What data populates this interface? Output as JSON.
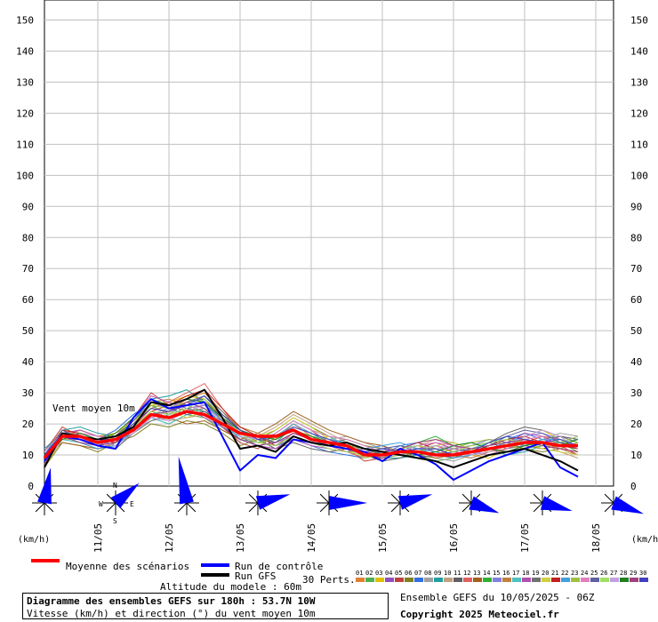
{
  "chart_data": {
    "type": "line",
    "title": "Diagramme des ensembles GEFS sur 180h : 53.7N 10W",
    "subtitle": "Vitesse (km/h) et direction (°) du vent moyen 10m",
    "annotation": "Vent moyen 10m",
    "ylabel": "(km/h)",
    "ylim": [
      0,
      155
    ],
    "yticks": [
      0,
      10,
      20,
      30,
      40,
      50,
      60,
      70,
      80,
      90,
      100,
      110,
      120,
      130,
      140,
      150
    ],
    "xlim": [
      0,
      180
    ],
    "date_ticks": [
      {
        "h": 18,
        "label": "11/05"
      },
      {
        "h": 42,
        "label": "12/05"
      },
      {
        "h": 66,
        "label": "13/05"
      },
      {
        "h": 90,
        "label": "14/05"
      },
      {
        "h": 114,
        "label": "15/05"
      },
      {
        "h": 138,
        "label": "16/05"
      },
      {
        "h": 162,
        "label": "17/05"
      },
      {
        "h": 186,
        "label": "18/05"
      }
    ],
    "x": [
      0,
      6,
      12,
      18,
      24,
      30,
      36,
      42,
      48,
      54,
      60,
      66,
      72,
      78,
      84,
      90,
      96,
      102,
      108,
      114,
      120,
      126,
      132,
      138,
      144,
      150,
      156,
      162,
      168,
      174,
      180
    ],
    "mean": [
      9,
      16,
      16,
      14,
      15,
      18,
      23,
      22,
      24,
      23,
      20,
      17,
      16,
      16,
      18,
      15,
      14,
      13,
      10,
      10,
      11,
      11,
      10,
      10,
      11,
      12,
      13,
      14,
      14,
      13,
      13
    ],
    "control": [
      8,
      16,
      15,
      13,
      12,
      22,
      28,
      25,
      26,
      27,
      16,
      5,
      10,
      9,
      15,
      14,
      13,
      12,
      11,
      8,
      12,
      10,
      7,
      2,
      5,
      8,
      10,
      12,
      14,
      6,
      3
    ],
    "gfs": [
      6,
      17,
      16,
      15,
      16,
      19,
      27,
      26,
      28,
      31,
      22,
      12,
      13,
      11,
      16,
      14,
      13,
      14,
      12,
      11,
      10,
      9,
      8,
      6,
      8,
      10,
      11,
      12,
      10,
      8,
      5
    ],
    "perturbations": [
      [
        8,
        18,
        17,
        15,
        14,
        20,
        25,
        24,
        28,
        30,
        24,
        19,
        17,
        15,
        20,
        16,
        13,
        12,
        11,
        10,
        12,
        13,
        11,
        9,
        10,
        12,
        14,
        15,
        13,
        12,
        11
      ],
      [
        10,
        15,
        14,
        12,
        13,
        17,
        22,
        20,
        23,
        22,
        18,
        15,
        14,
        16,
        19,
        17,
        15,
        14,
        9,
        11,
        12,
        10,
        8,
        9,
        12,
        14,
        16,
        13,
        15,
        14,
        13
      ],
      [
        7,
        16,
        18,
        16,
        17,
        21,
        26,
        27,
        29,
        28,
        21,
        17,
        15,
        14,
        17,
        15,
        16,
        13,
        10,
        9,
        11,
        12,
        13,
        11,
        10,
        9,
        12,
        16,
        18,
        15,
        12
      ],
      [
        9,
        17,
        15,
        13,
        16,
        19,
        24,
        23,
        25,
        26,
        22,
        16,
        13,
        12,
        16,
        14,
        12,
        11,
        12,
        13,
        10,
        11,
        12,
        10,
        9,
        11,
        13,
        12,
        14,
        16,
        15
      ],
      [
        11,
        19,
        16,
        14,
        15,
        22,
        30,
        26,
        24,
        25,
        19,
        14,
        12,
        17,
        21,
        18,
        14,
        12,
        8,
        9,
        10,
        12,
        14,
        12,
        11,
        10,
        12,
        14,
        16,
        13,
        10
      ],
      [
        6,
        14,
        13,
        11,
        14,
        16,
        20,
        19,
        21,
        20,
        17,
        13,
        15,
        18,
        22,
        19,
        16,
        15,
        13,
        12,
        11,
        9,
        10,
        12,
        13,
        15,
        14,
        12,
        11,
        12,
        14
      ],
      [
        8,
        15,
        17,
        15,
        18,
        23,
        27,
        25,
        27,
        29,
        23,
        18,
        16,
        13,
        15,
        13,
        11,
        10,
        9,
        10,
        13,
        14,
        12,
        10,
        11,
        13,
        15,
        17,
        15,
        14,
        12
      ],
      [
        10,
        16,
        14,
        12,
        13,
        18,
        21,
        22,
        26,
        24,
        20,
        16,
        14,
        15,
        18,
        16,
        15,
        16,
        14,
        12,
        10,
        11,
        9,
        8,
        10,
        12,
        11,
        13,
        15,
        17,
        16
      ],
      [
        9,
        18,
        19,
        17,
        16,
        21,
        28,
        29,
        31,
        27,
        21,
        15,
        13,
        14,
        19,
        17,
        14,
        13,
        11,
        9,
        9,
        10,
        11,
        13,
        14,
        12,
        10,
        11,
        13,
        14,
        13
      ],
      [
        7,
        15,
        15,
        14,
        17,
        20,
        23,
        21,
        22,
        23,
        19,
        17,
        16,
        19,
        23,
        20,
        17,
        14,
        12,
        11,
        12,
        13,
        15,
        14,
        12,
        11,
        13,
        15,
        14,
        11,
        9
      ],
      [
        12,
        17,
        16,
        13,
        12,
        17,
        22,
        24,
        27,
        28,
        22,
        17,
        15,
        12,
        14,
        12,
        11,
        12,
        10,
        8,
        9,
        11,
        10,
        9,
        11,
        14,
        17,
        19,
        18,
        16,
        15
      ],
      [
        8,
        16,
        18,
        16,
        15,
        19,
        25,
        27,
        30,
        33,
        25,
        18,
        14,
        13,
        17,
        15,
        13,
        11,
        9,
        10,
        11,
        12,
        13,
        11,
        10,
        11,
        12,
        14,
        16,
        15,
        14
      ],
      [
        9,
        14,
        13,
        12,
        14,
        18,
        24,
        22,
        20,
        21,
        18,
        15,
        17,
        20,
        24,
        21,
        18,
        16,
        14,
        13,
        11,
        10,
        9,
        10,
        12,
        13,
        15,
        13,
        12,
        13,
        12
      ],
      [
        10,
        17,
        15,
        14,
        16,
        21,
        26,
        23,
        25,
        24,
        20,
        16,
        15,
        16,
        18,
        16,
        14,
        13,
        12,
        11,
        12,
        14,
        16,
        13,
        11,
        10,
        11,
        12,
        13,
        14,
        11
      ],
      [
        7,
        16,
        17,
        15,
        13,
        18,
        23,
        25,
        28,
        26,
        21,
        17,
        16,
        14,
        16,
        14,
        13,
        12,
        10,
        9,
        10,
        11,
        12,
        12,
        13,
        15,
        14,
        16,
        17,
        15,
        13
      ],
      [
        11,
        18,
        16,
        14,
        15,
        20,
        27,
        28,
        26,
        27,
        23,
        19,
        17,
        15,
        19,
        17,
        15,
        14,
        11,
        10,
        11,
        12,
        11,
        10,
        9,
        11,
        13,
        15,
        14,
        12,
        10
      ],
      [
        8,
        15,
        14,
        13,
        15,
        19,
        22,
        20,
        23,
        25,
        20,
        16,
        14,
        17,
        21,
        18,
        16,
        13,
        11,
        12,
        13,
        12,
        10,
        11,
        12,
        14,
        16,
        14,
        13,
        14,
        15
      ],
      [
        9,
        17,
        18,
        16,
        16,
        22,
        29,
        27,
        25,
        22,
        19,
        15,
        13,
        12,
        15,
        13,
        12,
        11,
        10,
        11,
        12,
        13,
        14,
        12,
        10,
        12,
        14,
        17,
        16,
        13,
        12
      ],
      [
        10,
        16,
        15,
        13,
        14,
        17,
        21,
        23,
        27,
        29,
        24,
        18,
        15,
        14,
        17,
        15,
        14,
        15,
        13,
        11,
        10,
        9,
        10,
        11,
        13,
        14,
        12,
        13,
        15,
        16,
        14
      ],
      [
        6,
        15,
        16,
        14,
        17,
        21,
        25,
        24,
        22,
        24,
        21,
        17,
        16,
        18,
        22,
        19,
        15,
        12,
        9,
        10,
        11,
        12,
        13,
        14,
        12,
        11,
        13,
        14,
        12,
        11,
        10
      ],
      [
        8,
        18,
        17,
        15,
        14,
        19,
        24,
        26,
        29,
        31,
        25,
        19,
        16,
        13,
        16,
        14,
        13,
        12,
        11,
        10,
        12,
        14,
        12,
        10,
        11,
        13,
        15,
        16,
        14,
        13,
        12
      ],
      [
        12,
        16,
        14,
        12,
        13,
        18,
        23,
        22,
        24,
        23,
        19,
        16,
        15,
        16,
        20,
        17,
        15,
        14,
        12,
        13,
        14,
        12,
        11,
        9,
        10,
        12,
        14,
        13,
        15,
        15,
        13
      ],
      [
        9,
        17,
        16,
        15,
        16,
        20,
        26,
        25,
        27,
        25,
        20,
        16,
        14,
        15,
        18,
        16,
        14,
        13,
        10,
        9,
        10,
        11,
        13,
        12,
        14,
        15,
        13,
        12,
        13,
        14,
        16
      ],
      [
        7,
        15,
        17,
        16,
        15,
        18,
        22,
        24,
        26,
        27,
        22,
        17,
        15,
        17,
        21,
        18,
        16,
        15,
        13,
        11,
        11,
        13,
        14,
        13,
        11,
        10,
        12,
        15,
        16,
        12,
        11
      ],
      [
        10,
        18,
        15,
        13,
        15,
        21,
        27,
        25,
        23,
        24,
        21,
        18,
        16,
        14,
        17,
        15,
        13,
        12,
        11,
        12,
        13,
        11,
        10,
        11,
        12,
        13,
        16,
        18,
        17,
        14,
        13
      ],
      [
        8,
        16,
        16,
        14,
        16,
        19,
        24,
        23,
        25,
        28,
        23,
        17,
        14,
        13,
        16,
        14,
        12,
        11,
        10,
        10,
        12,
        13,
        12,
        11,
        13,
        14,
        15,
        14,
        13,
        15,
        14
      ],
      [
        11,
        17,
        15,
        14,
        13,
        17,
        22,
        21,
        24,
        26,
        20,
        16,
        15,
        16,
        19,
        17,
        15,
        13,
        11,
        11,
        10,
        12,
        13,
        12,
        10,
        11,
        13,
        16,
        18,
        16,
        12
      ],
      [
        9,
        15,
        17,
        15,
        17,
        22,
        28,
        26,
        28,
        27,
        22,
        18,
        16,
        15,
        18,
        16,
        14,
        14,
        12,
        10,
        11,
        10,
        11,
        13,
        14,
        12,
        11,
        13,
        14,
        13,
        15
      ],
      [
        7,
        16,
        14,
        13,
        14,
        18,
        23,
        24,
        27,
        25,
        19,
        15,
        13,
        14,
        17,
        15,
        14,
        12,
        10,
        9,
        12,
        14,
        15,
        13,
        12,
        13,
        14,
        15,
        13,
        12,
        11
      ],
      [
        10,
        17,
        16,
        15,
        15,
        20,
        25,
        24,
        26,
        29,
        23,
        18,
        15,
        16,
        19,
        17,
        15,
        13,
        11,
        12,
        11,
        12,
        12,
        10,
        11,
        14,
        16,
        15,
        14,
        15,
        13
      ]
    ],
    "series_colors": [
      "#e08030",
      "#50b050",
      "#e0c000",
      "#9050c0",
      "#c04040",
      "#808020",
      "#3070e0",
      "#a0a0a0",
      "#20a0a0",
      "#c0a080",
      "#606060",
      "#e06060",
      "#a06020",
      "#30b030",
      "#8080e0",
      "#c08040",
      "#50c0c0",
      "#b050b0",
      "#707070",
      "#d0d040",
      "#c02020",
      "#40a0e0",
      "#a0c040",
      "#e080c0",
      "#6060a0",
      "#a0e060",
      "#c0a0e0",
      "#208020",
      "#a04080",
      "#4040c0"
    ],
    "wind_dirs_deg": [
      190,
      230,
      170,
      255,
      270,
      255,
      290,
      285,
      290
    ],
    "wind_speeds": [
      16,
      12,
      25,
      14,
      18,
      14,
      11,
      12,
      13
    ],
    "legend": {
      "mean": "Moyenne des scénarios",
      "control": "Run de contrôle",
      "gfs": "Run GFS",
      "perts_label": "30 Perts.",
      "perts_numbers": [
        "01",
        "02",
        "03",
        "04",
        "05",
        "06",
        "07",
        "08",
        "09",
        "10",
        "11",
        "12",
        "13",
        "14",
        "15",
        "16",
        "17",
        "18",
        "19",
        "20",
        "21",
        "22",
        "23",
        "24",
        "25",
        "26",
        "27",
        "28",
        "29",
        "30"
      ]
    },
    "colors": {
      "mean": "#ff0000",
      "control": "#0000ff",
      "gfs": "#000000",
      "grid": "#c0c0c0",
      "rose": "#0000ff"
    }
  },
  "info": {
    "altitude": "Altitude du modele : 60m",
    "ensemble": "Ensemble GEFS du 10/05/2025 - 06Z",
    "copyright": "Copyright 2025 Meteociel.fr",
    "unit_left": "(km/h)",
    "unit_right": "(km/h)",
    "rose_n": "N",
    "rose_s": "S",
    "rose_e": "E",
    "rose_w": "W"
  }
}
